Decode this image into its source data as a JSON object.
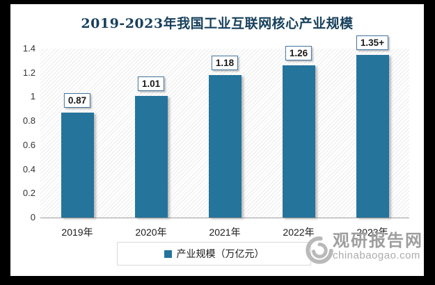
{
  "window": {
    "background": "#000000"
  },
  "colors": {
    "bar": "#24749c",
    "title": "#17405c",
    "label_box_border": "#41719c",
    "axis_line": "#9d9d9d",
    "hatch": "#ebebeb",
    "legend_border": "#d9d9d9",
    "watermark": "#9e9e9e"
  },
  "chart_data": {
    "type": "bar",
    "title": "2019-2023年我国工业互联网核心产业规模",
    "categories": [
      "2019年",
      "2020年",
      "2021年",
      "2022年",
      "2023年"
    ],
    "values": [
      0.87,
      1.01,
      1.18,
      1.26,
      1.35
    ],
    "value_labels": [
      "0.87",
      "1.01",
      "1.18",
      "1.26",
      "1.35+"
    ],
    "series_name": "产业规模（万亿元）",
    "xlabel": "",
    "ylabel": "",
    "ylim": [
      0,
      1.4
    ],
    "ytick_values": [
      0,
      0.2,
      0.4,
      0.6,
      0.8,
      1,
      1.2,
      1.4
    ],
    "ytick_labels": [
      "0",
      "0.2",
      "0.4",
      "0.6",
      "0.8",
      "1",
      "1.2",
      "1.4"
    ],
    "grid": false,
    "legend_position": "bottom",
    "plot_background": "diagonal-hatch"
  },
  "watermark": {
    "name": "观研报告网",
    "url": "chinabaogao.com",
    "logo": "swirl-icon"
  }
}
